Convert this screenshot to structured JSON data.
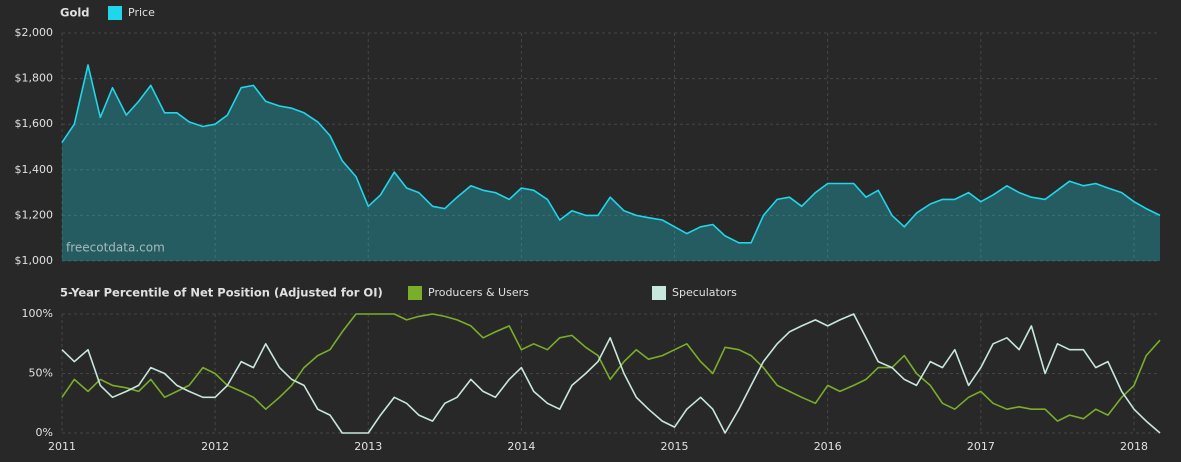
{
  "chart_data": [
    {
      "type": "area",
      "title": "Gold",
      "annotation": "freecotdata.com",
      "x": [
        2011,
        2011.08,
        2011.17,
        2011.25,
        2011.33,
        2011.42,
        2011.5,
        2011.58,
        2011.67,
        2011.75,
        2011.83,
        2011.92,
        2012,
        2012.08,
        2012.17,
        2012.25,
        2012.33,
        2012.42,
        2012.5,
        2012.58,
        2012.67,
        2012.75,
        2012.83,
        2012.92,
        2013,
        2013.08,
        2013.17,
        2013.25,
        2013.33,
        2013.42,
        2013.5,
        2013.58,
        2013.67,
        2013.75,
        2013.83,
        2013.92,
        2014,
        2014.08,
        2014.17,
        2014.25,
        2014.33,
        2014.42,
        2014.5,
        2014.58,
        2014.67,
        2014.75,
        2014.83,
        2014.92,
        2015,
        2015.08,
        2015.17,
        2015.25,
        2015.33,
        2015.42,
        2015.5,
        2015.58,
        2015.67,
        2015.75,
        2015.83,
        2015.92,
        2016,
        2016.08,
        2016.17,
        2016.25,
        2016.33,
        2016.42,
        2016.5,
        2016.58,
        2016.67,
        2016.75,
        2016.83,
        2016.92,
        2017,
        2017.08,
        2017.17,
        2017.25,
        2017.33,
        2017.42,
        2017.5,
        2017.58,
        2017.67,
        2017.75,
        2017.83,
        2017.92,
        2018,
        2018.08,
        2018.17
      ],
      "series": [
        {
          "name": "Price",
          "color": "#1fd6ea",
          "values": [
            1520,
            1600,
            1860,
            1630,
            1760,
            1640,
            1700,
            1770,
            1650,
            1650,
            1610,
            1590,
            1600,
            1640,
            1760,
            1770,
            1700,
            1680,
            1670,
            1650,
            1610,
            1550,
            1440,
            1370,
            1240,
            1290,
            1390,
            1320,
            1300,
            1240,
            1230,
            1280,
            1330,
            1310,
            1300,
            1270,
            1320,
            1310,
            1270,
            1180,
            1220,
            1200,
            1200,
            1280,
            1220,
            1200,
            1190,
            1180,
            1150,
            1120,
            1150,
            1160,
            1110,
            1080,
            1080,
            1200,
            1270,
            1280,
            1240,
            1300,
            1340,
            1340,
            1340,
            1280,
            1310,
            1200,
            1150,
            1210,
            1250,
            1270,
            1270,
            1300,
            1260,
            1290,
            1330,
            1300,
            1280,
            1270,
            1310,
            1350,
            1330,
            1340,
            1320,
            1300,
            1260,
            1230,
            1200
          ]
        }
      ],
      "xlim": [
        2011,
        2018.17
      ],
      "ylim": [
        1000,
        2000
      ],
      "yticks": [
        {
          "value": 1000,
          "label": "$1,000"
        },
        {
          "value": 1200,
          "label": "$1,200"
        },
        {
          "value": 1400,
          "label": "$1,400"
        },
        {
          "value": 1600,
          "label": "$1,600"
        },
        {
          "value": 1800,
          "label": "$1,800"
        },
        {
          "value": 2000,
          "label": "$2,000"
        }
      ],
      "grid": true
    },
    {
      "type": "line",
      "title": "5-Year Percentile of Net Position (Adjusted for OI)",
      "x": [
        2011,
        2011.08,
        2011.17,
        2011.25,
        2011.33,
        2011.42,
        2011.5,
        2011.58,
        2011.67,
        2011.75,
        2011.83,
        2011.92,
        2012,
        2012.08,
        2012.17,
        2012.25,
        2012.33,
        2012.42,
        2012.5,
        2012.58,
        2012.67,
        2012.75,
        2012.83,
        2012.92,
        2013,
        2013.08,
        2013.17,
        2013.25,
        2013.33,
        2013.42,
        2013.5,
        2013.58,
        2013.67,
        2013.75,
        2013.83,
        2013.92,
        2014,
        2014.08,
        2014.17,
        2014.25,
        2014.33,
        2014.42,
        2014.5,
        2014.58,
        2014.67,
        2014.75,
        2014.83,
        2014.92,
        2015,
        2015.08,
        2015.17,
        2015.25,
        2015.33,
        2015.42,
        2015.5,
        2015.58,
        2015.67,
        2015.75,
        2015.83,
        2015.92,
        2016,
        2016.08,
        2016.17,
        2016.25,
        2016.33,
        2016.42,
        2016.5,
        2016.58,
        2016.67,
        2016.75,
        2016.83,
        2016.92,
        2017,
        2017.08,
        2017.17,
        2017.25,
        2017.33,
        2017.42,
        2017.5,
        2017.58,
        2017.67,
        2017.75,
        2017.83,
        2017.92,
        2018,
        2018.08,
        2018.17
      ],
      "series": [
        {
          "name": "Producers & Users",
          "color": "#7aad2a",
          "values": [
            30,
            45,
            35,
            45,
            40,
            38,
            35,
            45,
            30,
            35,
            40,
            55,
            50,
            40,
            35,
            30,
            20,
            30,
            40,
            55,
            65,
            70,
            85,
            100,
            100,
            100,
            100,
            95,
            98,
            100,
            98,
            95,
            90,
            80,
            85,
            90,
            70,
            75,
            70,
            80,
            82,
            72,
            65,
            45,
            60,
            70,
            62,
            65,
            70,
            75,
            60,
            50,
            72,
            70,
            65,
            55,
            40,
            35,
            30,
            25,
            40,
            35,
            40,
            45,
            55,
            55,
            65,
            50,
            40,
            25,
            20,
            30,
            35,
            25,
            20,
            22,
            20,
            20,
            10,
            15,
            12,
            20,
            15,
            30,
            40,
            65,
            78
          ]
        },
        {
          "name": "Speculators",
          "color": "#c8e6dc",
          "values": [
            70,
            60,
            70,
            40,
            30,
            35,
            40,
            55,
            50,
            40,
            35,
            30,
            30,
            40,
            60,
            55,
            75,
            55,
            45,
            40,
            20,
            15,
            0,
            0,
            0,
            15,
            30,
            25,
            15,
            10,
            25,
            30,
            45,
            35,
            30,
            45,
            55,
            35,
            25,
            20,
            40,
            50,
            60,
            80,
            50,
            30,
            20,
            10,
            5,
            20,
            30,
            20,
            0,
            20,
            40,
            60,
            75,
            85,
            90,
            95,
            90,
            95,
            100,
            80,
            60,
            55,
            45,
            40,
            60,
            55,
            70,
            40,
            55,
            75,
            80,
            70,
            90,
            50,
            75,
            70,
            70,
            55,
            60,
            35,
            20,
            10,
            0
          ]
        }
      ],
      "xlim": [
        2011,
        2018.17
      ],
      "xticks": [
        2011,
        2012,
        2013,
        2014,
        2015,
        2016,
        2017,
        2018
      ],
      "ylim": [
        0,
        100
      ],
      "yticks": [
        {
          "value": 0,
          "label": "0%"
        },
        {
          "value": 50,
          "label": "50%"
        },
        {
          "value": 100,
          "label": "100%"
        }
      ],
      "grid": true
    }
  ]
}
